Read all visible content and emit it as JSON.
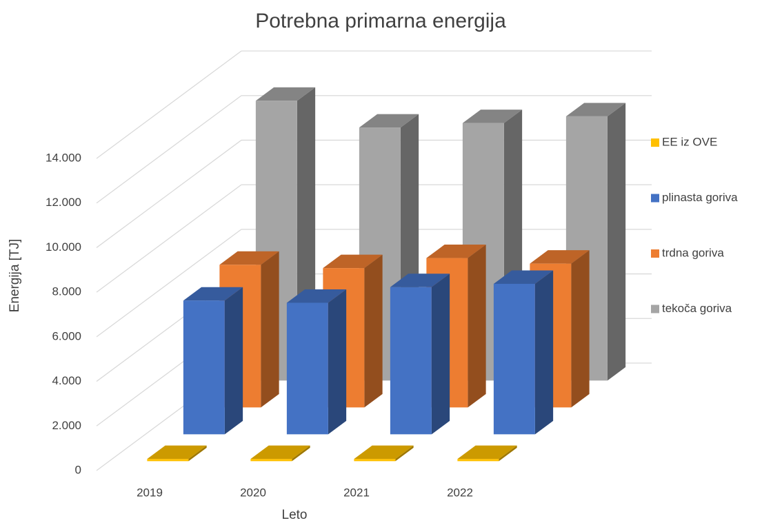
{
  "chart_data": {
    "type": "bar3d",
    "title": "Potrebna primarna energija",
    "xlabel": "Leto",
    "ylabel": "Energija [TJ]",
    "categories": [
      "2019",
      "2020",
      "2021",
      "2022"
    ],
    "series": [
      {
        "name": "EE iz OVE",
        "color": "#ffc000",
        "values": [
          100,
          100,
          100,
          100
        ]
      },
      {
        "name": "plinasta goriva",
        "color": "#4472c4",
        "values": [
          6000,
          5900,
          6600,
          6750
        ]
      },
      {
        "name": "trdna goriva",
        "color": "#ed7d31",
        "values": [
          6400,
          6250,
          6700,
          6450
        ]
      },
      {
        "name": "tekoča goriva",
        "color": "#a5a5a5",
        "values": [
          12550,
          11350,
          11550,
          11850
        ]
      }
    ],
    "ylim": [
      0,
      14000
    ],
    "yticks": [
      0,
      {
        "value": 2000,
        "label": "2.000"
      },
      {
        "value": 4000,
        "label": "4.000"
      },
      {
        "value": 6000,
        "label": "6.000"
      },
      {
        "value": 8000,
        "label": "8.000"
      },
      {
        "value": 10000,
        "label": "10.000"
      },
      {
        "value": 12000,
        "label": "12.000"
      },
      {
        "value": 14000,
        "label": "14.000"
      }
    ],
    "grid": true,
    "legend": "right"
  }
}
